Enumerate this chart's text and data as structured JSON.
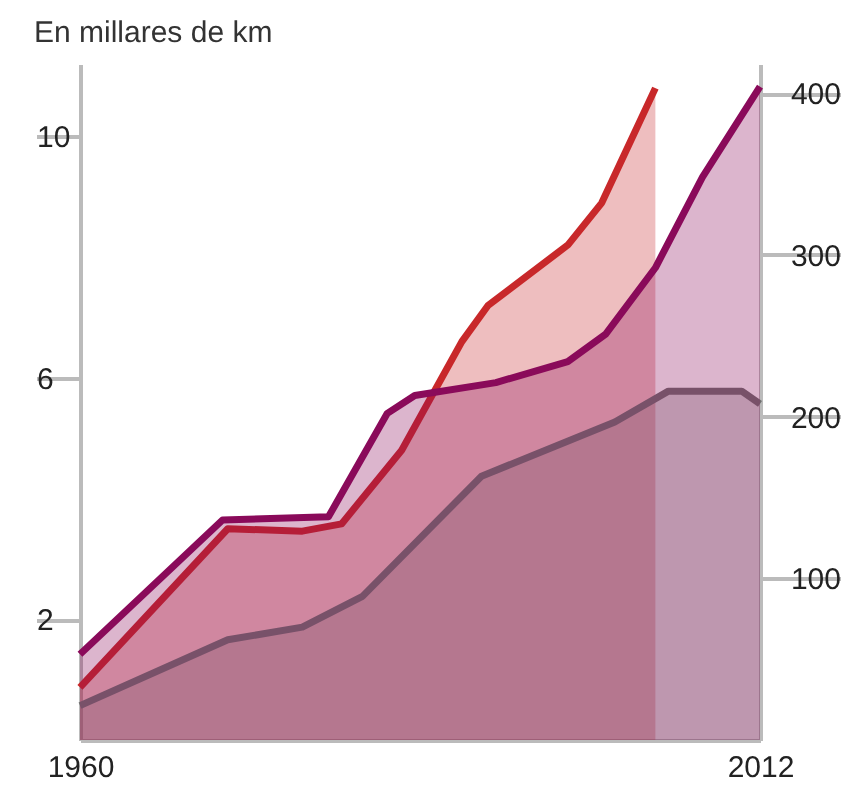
{
  "chart_data": {
    "type": "area",
    "title": "En millares de km",
    "xlim": [
      1960,
      2012
    ],
    "xticks": [
      1960,
      2012
    ],
    "ylim": [
      0,
      11.2
    ],
    "yticks": [
      2,
      6,
      10
    ],
    "y2lim": [
      0,
      418
    ],
    "y2ticks": [
      100,
      200,
      300,
      400
    ],
    "series": [
      {
        "color": "#c8282a",
        "x": [
          1960,
          1971.3,
          1977,
          1980,
          1984.6,
          1989.2,
          1991.2,
          1997.3,
          1999.9,
          2004
        ],
        "values": [
          0.87,
          3.5,
          3.46,
          3.58,
          4.8,
          6.6,
          7.2,
          8.2,
          8.9,
          10.8
        ]
      },
      {
        "color": "#8a0a5a",
        "axis": "y2",
        "x": [
          1960,
          1970.9,
          1979,
          1983.5,
          1985.6,
          1991.8,
          1997.3,
          2000.2,
          2004,
          2007.6,
          2012
        ],
        "values": [
          53,
          136,
          138,
          202,
          213,
          221,
          234,
          251,
          292,
          348,
          404
        ]
      },
      {
        "color": "#707070",
        "x": [
          1960,
          1971.3,
          1977,
          1981.6,
          1990.7,
          2000.9,
          2005,
          2010.6,
          2012
        ],
        "values": [
          0.57,
          1.66,
          1.87,
          2.38,
          4.37,
          5.27,
          5.78,
          5.78,
          5.57
        ]
      }
    ]
  }
}
